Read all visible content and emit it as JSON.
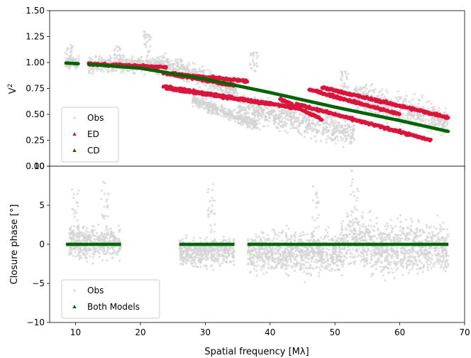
{
  "chart_data": [
    {
      "type": "scatter",
      "title": "",
      "ylabel": "V",
      "ylabel_sup": "2",
      "xlim": [
        6,
        70
      ],
      "ylim": [
        0.0,
        1.5
      ],
      "xticks": [
        10,
        20,
        30,
        40,
        50,
        60,
        70
      ],
      "yticks": [
        {
          "value": 0.0,
          "label": "0.00"
        },
        {
          "value": 0.25,
          "label": "0.25"
        },
        {
          "value": 0.5,
          "label": "0.50"
        },
        {
          "value": 0.75,
          "label": "0.75"
        },
        {
          "value": 1.0,
          "label": "1.00"
        },
        {
          "value": 1.25,
          "label": "1.25"
        },
        {
          "value": 1.5,
          "label": "1.50"
        }
      ],
      "legend": "lower-left",
      "colors": {
        "obs": "#d3d3d3",
        "ed": "#dc143c",
        "cd": "#006400"
      },
      "series": [
        {
          "name": "Obs",
          "groups": [
            {
              "x": [
                8.5,
                10.5
              ],
              "y_center": 1.0,
              "spread": 0.05
            },
            {
              "x": [
                12.0,
                23.5
              ],
              "y_center": 0.98,
              "spread": 0.07
            },
            {
              "x": [
                23.5,
                35.0
              ],
              "y_center": 0.86,
              "spread": 0.08
            },
            {
              "x": [
                28.0,
                38.0
              ],
              "y_center": 0.52,
              "spread": 0.05
            },
            {
              "x": [
                35.0,
                53.0
              ],
              "y_center": 0.45,
              "spread": 0.12
            },
            {
              "x": [
                53.0,
                67.5
              ],
              "y_center": 0.55,
              "spread": 0.12
            }
          ],
          "peaks": [
            {
              "x": 16.5,
              "y": 1.18
            },
            {
              "x": 21.0,
              "y": 1.3
            },
            {
              "x": 9.0,
              "y": 1.17
            },
            {
              "x": 37.5,
              "y": 1.1
            },
            {
              "x": 51.5,
              "y": 0.93
            }
          ]
        },
        {
          "name": "ED",
          "bands": [
            {
              "x": [
                12.0,
                24.0
              ],
              "y": [
                0.985,
                0.955
              ]
            },
            {
              "x": [
                23.5,
                34.5
              ],
              "y": [
                0.9,
                0.78
              ]
            },
            {
              "x": [
                25.0,
                36.5
              ],
              "y": [
                0.89,
                0.82
              ]
            },
            {
              "x": [
                23.5,
                40.0
              ],
              "y": [
                0.77,
                0.6
              ]
            },
            {
              "x": [
                24.0,
                44.5
              ],
              "y": [
                0.75,
                0.56
              ]
            },
            {
              "x": [
                41.5,
                48.0
              ],
              "y": [
                0.65,
                0.45
              ]
            },
            {
              "x": [
                44.0,
                64.8
              ],
              "y": [
                0.6,
                0.25
              ]
            },
            {
              "x": [
                46.0,
                60.0
              ],
              "y": [
                0.74,
                0.5
              ]
            },
            {
              "x": [
                48.0,
                67.5
              ],
              "y": [
                0.76,
                0.47
              ]
            }
          ]
        },
        {
          "name": "CD",
          "curve": [
            {
              "x": 8.5,
              "y": 0.995
            },
            {
              "x": 10.5,
              "y": 0.988
            },
            {
              "x": 12.0,
              "y": 0.983
            },
            {
              "x": 20.0,
              "y": 0.945
            },
            {
              "x": 30.0,
              "y": 0.84
            },
            {
              "x": 40.0,
              "y": 0.71
            },
            {
              "x": 50.0,
              "y": 0.57
            },
            {
              "x": 60.0,
              "y": 0.44
            },
            {
              "x": 67.5,
              "y": 0.335
            }
          ],
          "gaps": [
            [
              10.5,
              12.0
            ]
          ]
        }
      ]
    },
    {
      "type": "scatter",
      "title": "",
      "xlabel": "Spatial frequency [Mλ]",
      "ylabel": "Closure phase [°]",
      "xlim": [
        6,
        70
      ],
      "ylim": [
        -10,
        10
      ],
      "xticks": [
        10,
        20,
        30,
        40,
        50,
        60,
        70
      ],
      "yticks": [
        {
          "value": -10,
          "label": "−10"
        },
        {
          "value": -5,
          "label": "−5"
        },
        {
          "value": 0,
          "label": "0"
        },
        {
          "value": 5,
          "label": "5"
        },
        {
          "value": 10,
          "label": "10"
        }
      ],
      "legend": "lower-left",
      "colors": {
        "obs": "#d3d3d3",
        "model": "#006400"
      },
      "series": [
        {
          "name": "Obs",
          "groups": [
            {
              "x": [
                9.0,
                17.0
              ],
              "y_center": 0.2,
              "spread": 1.8
            },
            {
              "x": [
                26.0,
                34.5
              ],
              "y_center": -1.0,
              "spread": 1.5
            },
            {
              "x": [
                36.5,
                51.0
              ],
              "y_center": -1.0,
              "spread": 2.3
            },
            {
              "x": [
                51.0,
                55.5
              ],
              "y_center": 0.5,
              "spread": 3.0
            },
            {
              "x": [
                55.5,
                67.5
              ],
              "y_center": -0.5,
              "spread": 2.8
            }
          ],
          "peaks": [
            {
              "x": 10.0,
              "y": 7.5
            },
            {
              "x": 14.5,
              "y": 8.2
            },
            {
              "x": 31.0,
              "y": 7.8
            },
            {
              "x": 47.0,
              "y": 7.5
            },
            {
              "x": 53.0,
              "y": 9.5
            }
          ]
        },
        {
          "name": "Both Models",
          "segments": [
            [
              8.5,
              17.0
            ],
            [
              26.0,
              34.5
            ],
            [
              36.5,
              67.5
            ]
          ],
          "y": 0
        }
      ]
    }
  ]
}
